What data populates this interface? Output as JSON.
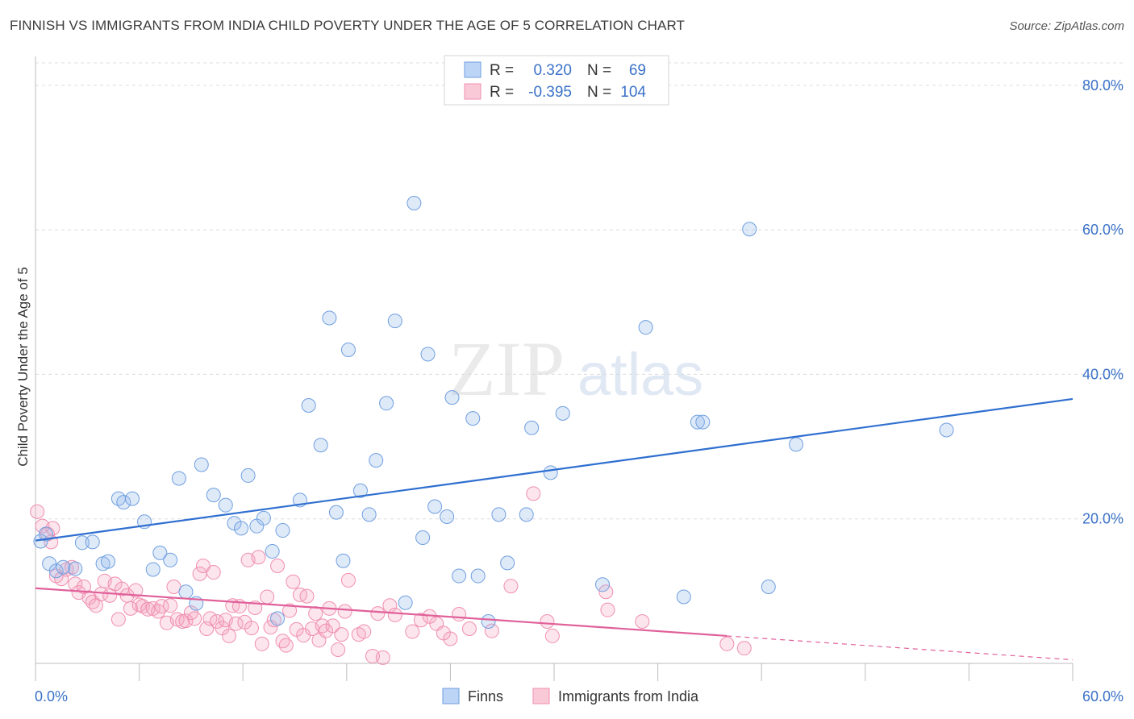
{
  "header": {
    "title": "FINNISH VS IMMIGRANTS FROM INDIA CHILD POVERTY UNDER THE AGE OF 5 CORRELATION CHART",
    "source": "Source: ZipAtlas.com"
  },
  "watermark": {
    "zip": "ZIP",
    "atlas": "atlas"
  },
  "legend": {
    "r_label": "R =",
    "n_label": "N =",
    "finns_r": "0.320",
    "finns_n": "69",
    "india_r": "-0.395",
    "india_n": "104"
  },
  "chart_data": {
    "type": "scatter",
    "title": "FINNISH VS IMMIGRANTS FROM INDIA CHILD POVERTY UNDER THE AGE OF 5 CORRELATION CHART",
    "xlabel": "",
    "ylabel": "Child Poverty Under the Age of 5",
    "xlim": [
      0,
      60
    ],
    "ylim": [
      0,
      84
    ],
    "x_tick_labels": [
      "0.0%",
      "60.0%"
    ],
    "y_tick_labels": [
      "20.0%",
      "40.0%",
      "60.0%",
      "80.0%"
    ],
    "y_ticks": [
      20,
      40,
      60,
      80
    ],
    "grid": true,
    "legend_position": "top-center",
    "colors": {
      "finns": "#6f9fe0",
      "india": "#f08fb0",
      "finns_line": "#2f6fd0",
      "india_line": "#e0609a"
    },
    "series": [
      {
        "name": "Finns",
        "trend": {
          "x": [
            0,
            60
          ],
          "y": [
            17.0,
            36.6
          ]
        },
        "points": [
          [
            0.3,
            16.9
          ],
          [
            0.6,
            17.9
          ],
          [
            0.8,
            13.8
          ],
          [
            1.2,
            12.8
          ],
          [
            1.6,
            13.3
          ],
          [
            2.3,
            13.1
          ],
          [
            2.7,
            16.7
          ],
          [
            3.3,
            16.8
          ],
          [
            3.9,
            13.8
          ],
          [
            4.2,
            14.1
          ],
          [
            4.8,
            22.8
          ],
          [
            5.1,
            22.3
          ],
          [
            5.6,
            22.8
          ],
          [
            6.3,
            19.6
          ],
          [
            6.8,
            13.0
          ],
          [
            7.2,
            15.3
          ],
          [
            7.8,
            14.3
          ],
          [
            8.3,
            25.6
          ],
          [
            8.7,
            9.9
          ],
          [
            9.3,
            8.3
          ],
          [
            9.6,
            27.5
          ],
          [
            10.3,
            23.3
          ],
          [
            11.0,
            21.9
          ],
          [
            11.5,
            19.4
          ],
          [
            11.9,
            18.7
          ],
          [
            12.3,
            26.0
          ],
          [
            12.8,
            19.0
          ],
          [
            13.2,
            20.1
          ],
          [
            13.7,
            15.5
          ],
          [
            14.0,
            6.2
          ],
          [
            14.3,
            18.4
          ],
          [
            15.3,
            22.6
          ],
          [
            15.8,
            35.7
          ],
          [
            16.5,
            30.2
          ],
          [
            17.0,
            47.8
          ],
          [
            17.4,
            20.9
          ],
          [
            17.8,
            14.2
          ],
          [
            18.1,
            43.4
          ],
          [
            18.8,
            23.9
          ],
          [
            19.3,
            20.6
          ],
          [
            19.7,
            28.1
          ],
          [
            20.3,
            36.0
          ],
          [
            20.8,
            47.4
          ],
          [
            21.4,
            8.4
          ],
          [
            21.9,
            63.7
          ],
          [
            22.4,
            17.4
          ],
          [
            22.7,
            42.8
          ],
          [
            23.1,
            21.7
          ],
          [
            23.8,
            20.3
          ],
          [
            24.1,
            36.8
          ],
          [
            24.5,
            12.1
          ],
          [
            25.3,
            33.9
          ],
          [
            25.6,
            12.1
          ],
          [
            26.2,
            5.8
          ],
          [
            26.8,
            20.6
          ],
          [
            27.3,
            13.9
          ],
          [
            28.4,
            20.6
          ],
          [
            28.7,
            32.6
          ],
          [
            29.8,
            26.4
          ],
          [
            30.5,
            34.6
          ],
          [
            32.8,
            10.9
          ],
          [
            35.3,
            46.5
          ],
          [
            37.5,
            9.2
          ],
          [
            38.3,
            33.4
          ],
          [
            38.6,
            33.4
          ],
          [
            41.3,
            60.1
          ],
          [
            42.4,
            10.6
          ],
          [
            44.0,
            30.3
          ],
          [
            52.7,
            32.3
          ]
        ]
      },
      {
        "name": "Immigrants from India",
        "trend": {
          "x": [
            0,
            60
          ],
          "y": [
            10.4,
            0.5
          ],
          "solid_until_x": 40
        },
        "points": [
          [
            0.1,
            21.0
          ],
          [
            0.4,
            19.0
          ],
          [
            0.7,
            17.9
          ],
          [
            0.9,
            16.8
          ],
          [
            1.0,
            18.7
          ],
          [
            1.2,
            12.1
          ],
          [
            1.5,
            11.7
          ],
          [
            1.8,
            13.0
          ],
          [
            2.1,
            13.3
          ],
          [
            2.3,
            11.0
          ],
          [
            2.5,
            9.8
          ],
          [
            2.8,
            10.6
          ],
          [
            3.1,
            9.1
          ],
          [
            3.3,
            8.5
          ],
          [
            3.5,
            8.0
          ],
          [
            3.8,
            9.6
          ],
          [
            4.0,
            11.4
          ],
          [
            4.3,
            9.4
          ],
          [
            4.6,
            11.0
          ],
          [
            4.8,
            6.1
          ],
          [
            5.0,
            10.3
          ],
          [
            5.3,
            9.4
          ],
          [
            5.5,
            7.6
          ],
          [
            5.8,
            10.1
          ],
          [
            6.0,
            8.1
          ],
          [
            6.2,
            7.9
          ],
          [
            6.5,
            7.5
          ],
          [
            6.8,
            7.6
          ],
          [
            7.1,
            7.2
          ],
          [
            7.3,
            7.9
          ],
          [
            7.6,
            5.6
          ],
          [
            7.8,
            8.0
          ],
          [
            8.0,
            10.6
          ],
          [
            8.2,
            6.1
          ],
          [
            8.5,
            5.8
          ],
          [
            8.7,
            5.9
          ],
          [
            9.0,
            7.0
          ],
          [
            9.2,
            6.2
          ],
          [
            9.5,
            12.4
          ],
          [
            9.7,
            13.5
          ],
          [
            9.9,
            4.8
          ],
          [
            10.1,
            6.2
          ],
          [
            10.3,
            12.6
          ],
          [
            10.5,
            5.8
          ],
          [
            10.8,
            4.9
          ],
          [
            11.0,
            6.0
          ],
          [
            11.2,
            3.8
          ],
          [
            11.4,
            8.0
          ],
          [
            11.6,
            5.5
          ],
          [
            11.8,
            7.9
          ],
          [
            12.1,
            5.7
          ],
          [
            12.3,
            14.3
          ],
          [
            12.5,
            4.9
          ],
          [
            12.7,
            7.7
          ],
          [
            12.9,
            14.7
          ],
          [
            13.1,
            2.7
          ],
          [
            13.4,
            9.2
          ],
          [
            13.6,
            5.0
          ],
          [
            13.8,
            6.0
          ],
          [
            14.0,
            13.5
          ],
          [
            14.3,
            3.1
          ],
          [
            14.5,
            2.5
          ],
          [
            14.7,
            7.3
          ],
          [
            14.9,
            11.3
          ],
          [
            15.1,
            4.7
          ],
          [
            15.3,
            9.5
          ],
          [
            15.5,
            3.9
          ],
          [
            15.7,
            9.3
          ],
          [
            16.0,
            4.8
          ],
          [
            16.2,
            6.9
          ],
          [
            16.4,
            3.2
          ],
          [
            16.6,
            5.2
          ],
          [
            16.8,
            4.5
          ],
          [
            17.0,
            7.6
          ],
          [
            17.2,
            5.2
          ],
          [
            17.5,
            1.9
          ],
          [
            17.7,
            4.0
          ],
          [
            17.9,
            7.2
          ],
          [
            18.1,
            11.5
          ],
          [
            18.7,
            4.0
          ],
          [
            19.0,
            4.4
          ],
          [
            19.5,
            1.0
          ],
          [
            19.8,
            6.9
          ],
          [
            20.1,
            0.8
          ],
          [
            20.5,
            8.0
          ],
          [
            20.8,
            6.7
          ],
          [
            21.8,
            4.4
          ],
          [
            22.3,
            6.0
          ],
          [
            22.8,
            6.5
          ],
          [
            23.2,
            5.5
          ],
          [
            23.6,
            4.2
          ],
          [
            24.0,
            3.4
          ],
          [
            24.5,
            6.8
          ],
          [
            25.1,
            4.8
          ],
          [
            26.4,
            4.5
          ],
          [
            27.5,
            10.7
          ],
          [
            28.8,
            23.5
          ],
          [
            29.6,
            5.8
          ],
          [
            29.9,
            3.8
          ],
          [
            33.0,
            9.9
          ],
          [
            33.1,
            7.4
          ],
          [
            35.1,
            5.8
          ],
          [
            40.0,
            2.7
          ],
          [
            41.0,
            2.1
          ]
        ]
      }
    ]
  },
  "bottom_legend": {
    "finns": "Finns",
    "india": "Immigrants from India"
  }
}
